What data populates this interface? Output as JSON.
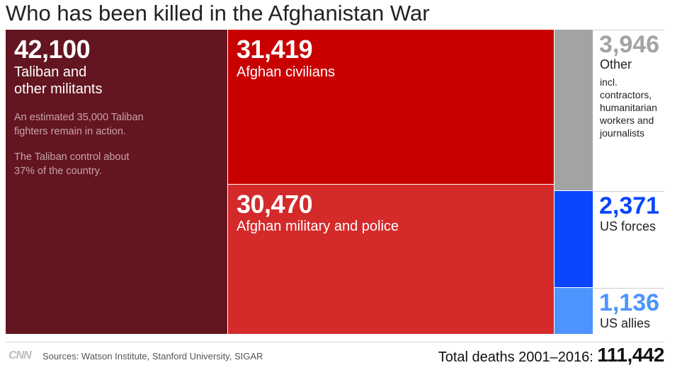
{
  "title": "Who has been killed in the Afghanistan War",
  "colors": {
    "taliban": "#631620",
    "civilians": "#c90000",
    "military": "#d42a2a",
    "other": "#a3a3a3",
    "us_forces": "#0a46ff",
    "us_allies": "#4d94ff"
  },
  "tiles": {
    "taliban": {
      "value": "42,100",
      "label": "Taliban and\nother militants",
      "note1": "An estimated 35,000 Taliban\nfighters remain in action.",
      "note2": "The Taliban control about\n37% of the country."
    },
    "civilians": {
      "value": "31,419",
      "label": "Afghan civilians"
    },
    "military": {
      "value": "30,470",
      "label": "Afghan military and police"
    },
    "other": {
      "value": "3,946",
      "label": "Other",
      "note": "incl.\ncontractors,\nhumanitarian\nworkers and\njournalists"
    },
    "us_forces": {
      "value": "2,371",
      "label": "US forces"
    },
    "us_allies": {
      "value": "1,136",
      "label": "US allies"
    }
  },
  "chart_data": {
    "type": "treemap",
    "title": "Who has been killed in the Afghanistan War",
    "categories": [
      "Taliban and other militants",
      "Afghan civilians",
      "Afghan military and police",
      "Other",
      "US forces",
      "US allies"
    ],
    "values": [
      42100,
      31419,
      30470,
      3946,
      2371,
      1136
    ],
    "total": 111442,
    "total_label": "Total deaths 2001–2016:"
  },
  "footer": {
    "logo": "CNN",
    "sources": "Sources: Watson Institute, Stanford University, SIGAR",
    "total_label": "Total deaths 2001–2016:",
    "total_value": "111,442"
  }
}
